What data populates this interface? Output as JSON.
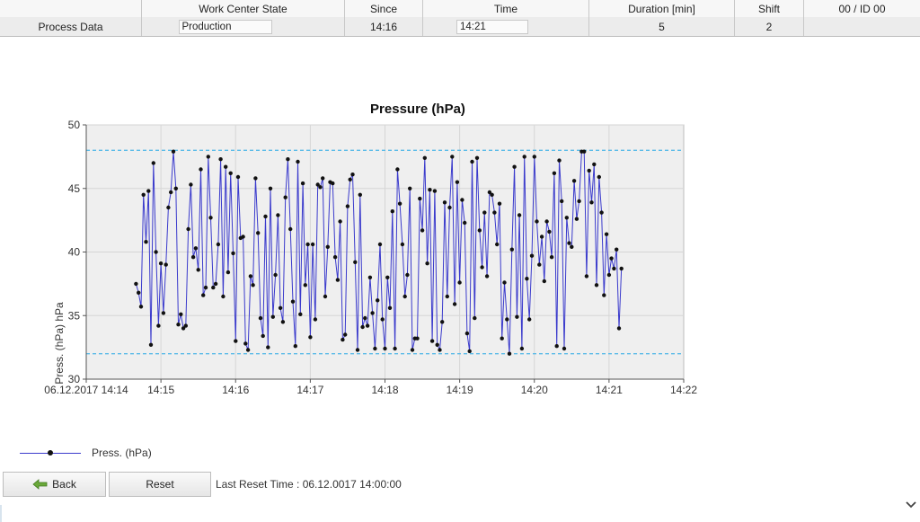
{
  "header": {
    "columns": [
      "",
      "Work Center State",
      "Since",
      "Time",
      "Duration [min]",
      "Shift",
      "00  / ID 00"
    ],
    "row_label": "Process Data",
    "work_center_state": "Production",
    "since": "14:16",
    "time": "14:21",
    "duration": "5",
    "shift": "2",
    "id": ""
  },
  "chart_data": {
    "type": "line",
    "title": "Pressure (hPa)",
    "ylabel": "Press. (hPa) hPa",
    "xlabel": "",
    "ylim": [
      30,
      50
    ],
    "yticks": [
      30,
      35,
      40,
      45,
      50
    ],
    "x_tick_labels": [
      "06.12.2017 14:14",
      "14:15",
      "14:16",
      "14:17",
      "14:18",
      "14:19",
      "14:20",
      "14:21",
      "14:22"
    ],
    "x_range_seconds": [
      0,
      480
    ],
    "limit_lines": [
      48,
      32
    ],
    "grid": true,
    "legend": "bottom-left",
    "colors": {
      "line": "#3a3acc",
      "marker": "#111111",
      "limit": "#5bbbe8",
      "plot_bg": "#efefef"
    },
    "series": [
      {
        "name": "Press. (hPa)",
        "start_time": "14:14:40",
        "interval_seconds": 2,
        "values": [
          37.5,
          36.8,
          35.7,
          44.5,
          40.8,
          44.8,
          32.7,
          47.0,
          40.0,
          34.2,
          39.1,
          35.2,
          39.0,
          43.5,
          44.7,
          47.9,
          45.0,
          34.3,
          35.1,
          34.0,
          34.2,
          41.8,
          45.3,
          39.6,
          40.3,
          38.6,
          46.5,
          36.6,
          37.2,
          47.5,
          42.7,
          37.2,
          37.5,
          40.6,
          47.3,
          36.5,
          46.7,
          38.4,
          46.2,
          39.9,
          33.0,
          45.9,
          41.1,
          41.2,
          32.8,
          32.3,
          38.1,
          37.4,
          45.8,
          41.5,
          34.8,
          33.4,
          42.8,
          32.5,
          45.0,
          34.9,
          38.2,
          42.9,
          35.6,
          34.5,
          44.3,
          47.3,
          41.8,
          36.1,
          32.6,
          47.1,
          35.1,
          45.4,
          37.4,
          40.6,
          33.3,
          40.6,
          34.7,
          45.3,
          45.1,
          45.8,
          36.5,
          40.4,
          45.5,
          45.4,
          39.6,
          37.8,
          42.4,
          33.1,
          33.5,
          43.6,
          45.7,
          46.1,
          39.2,
          32.3,
          44.5,
          34.1,
          34.8,
          34.2,
          38.0,
          35.2,
          32.4,
          36.2,
          40.6,
          34.7,
          32.4,
          38.0,
          35.6,
          43.2,
          32.4,
          46.5,
          43.8,
          40.6,
          36.5,
          38.2,
          45.0,
          32.3,
          33.2,
          33.2,
          44.2,
          41.7,
          47.4,
          39.1,
          44.9,
          33.0,
          44.8,
          32.7,
          32.3,
          34.5,
          43.9,
          36.5,
          43.5,
          47.5,
          35.9,
          45.5,
          37.6,
          44.1,
          42.3,
          33.6,
          32.2,
          47.1,
          34.8,
          47.4,
          41.7,
          38.8,
          43.1,
          38.1,
          44.7,
          44.5,
          43.1,
          40.6,
          43.8,
          33.2,
          37.6,
          34.7,
          32.0,
          40.2,
          46.7,
          34.9,
          42.9,
          32.4,
          47.5,
          37.9,
          34.7,
          39.7,
          47.5,
          42.4,
          39.0,
          41.2,
          37.7,
          42.4,
          41.6,
          39.6,
          46.2,
          32.6,
          47.2,
          44.0,
          32.4,
          42.7,
          40.7,
          40.4,
          45.6,
          42.6,
          44.0,
          47.9,
          47.9,
          38.1,
          46.4,
          43.9,
          46.9,
          37.4,
          45.9,
          43.1,
          36.6,
          41.4,
          38.2,
          39.5,
          38.7,
          40.2,
          34.0,
          38.7
        ]
      }
    ]
  },
  "legend": {
    "label": "Press. (hPa)"
  },
  "footer": {
    "back_label": "Back",
    "reset_label": "Reset",
    "reset_time_text": "Last Reset Time : 06.12.0017 14:00:00"
  },
  "icons": {
    "back": "arrow-left-icon",
    "scroll": "chevron-down-icon"
  }
}
